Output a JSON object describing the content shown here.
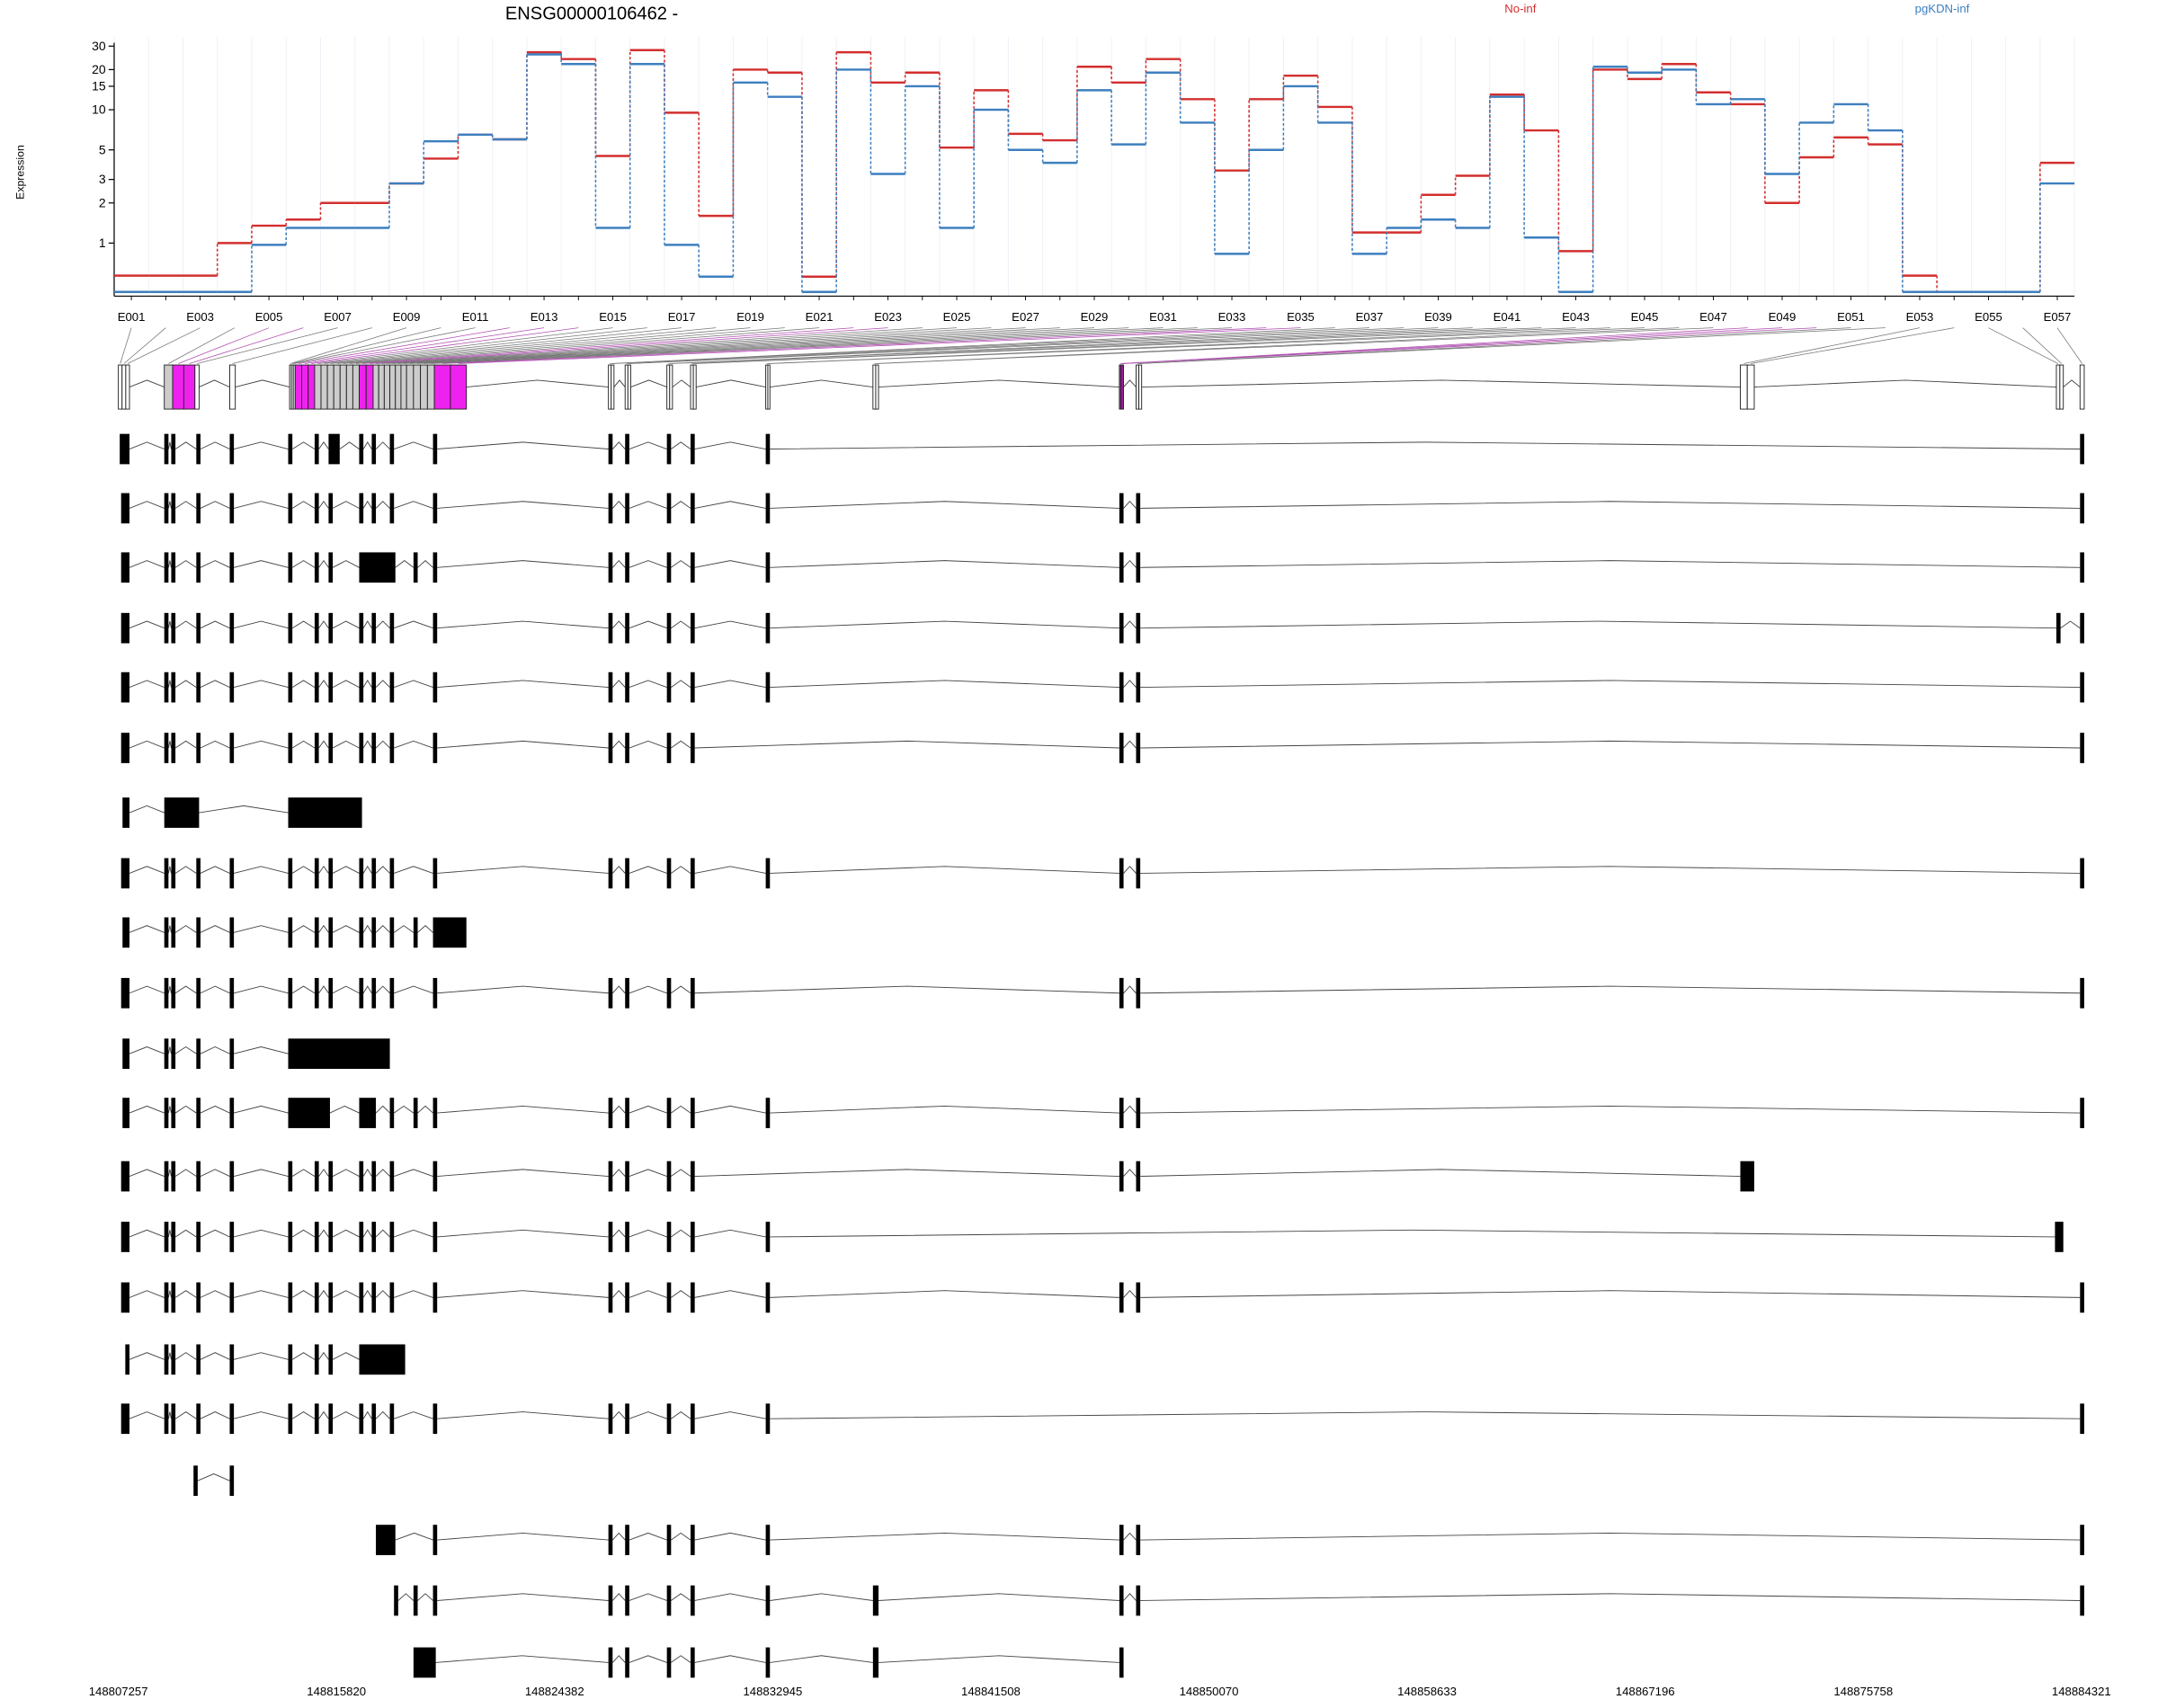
{
  "chart_data": {
    "type": "line",
    "title": "ENSG00000106462 -",
    "y_label": "Expression",
    "categories": [
      "E001",
      null,
      "E003",
      null,
      "E005",
      null,
      "E007",
      null,
      "E009",
      null,
      "E011",
      null,
      "E013",
      null,
      "E015",
      null,
      "E017",
      null,
      "E019",
      null,
      "E021",
      null,
      "E023",
      null,
      "E025",
      null,
      "E027",
      null,
      "E029",
      null,
      "E031",
      null,
      "E033",
      null,
      "E035",
      null,
      "E037",
      null,
      "E039",
      null,
      "E041",
      null,
      "E043",
      null,
      "E045",
      null,
      "E047",
      null,
      "E049",
      null,
      "E051",
      null,
      "E053",
      null,
      "E055",
      null,
      "E057"
    ],
    "series": [
      {
        "name": "No-inf",
        "color": "#d32f2f",
        "values": [
          0.57,
          0.57,
          0.57,
          1.0,
          1.35,
          1.5,
          2.0,
          2.0,
          2.8,
          4.3,
          6.5,
          6.0,
          27,
          24,
          4.5,
          28,
          9.5,
          1.6,
          20,
          19,
          0.56,
          27,
          16,
          19,
          5.2,
          14,
          6.6,
          5.9,
          21,
          16,
          24,
          12,
          3.5,
          12,
          18,
          10.5,
          1.2,
          1.2,
          2.3,
          3.2,
          13,
          7,
          0.87,
          20,
          17,
          22,
          13.5,
          11,
          2.0,
          4.4,
          6.2,
          5.5,
          0.57,
          0.43,
          0.43,
          0.43,
          4.0
        ]
      },
      {
        "name": "pgKDN-inf",
        "color": "#3d7fbf",
        "values": [
          0.43,
          0.43,
          0.43,
          0.43,
          0.97,
          1.3,
          1.3,
          1.3,
          2.8,
          5.8,
          6.5,
          6.0,
          26,
          22,
          1.3,
          22,
          0.97,
          0.56,
          16,
          12.5,
          0.43,
          20,
          3.3,
          15,
          1.3,
          10,
          5.0,
          4.0,
          14,
          5.5,
          19,
          8,
          0.83,
          5.0,
          15,
          8,
          0.83,
          1.3,
          1.5,
          1.3,
          12.5,
          1.1,
          0.43,
          21,
          19,
          20,
          11,
          12,
          3.3,
          8,
          11,
          7,
          0.43,
          0.43,
          0.43,
          0.43,
          2.8
        ]
      }
    ],
    "ylim": [
      0.4,
      35
    ],
    "yticks": [
      1,
      2,
      3,
      5,
      10,
      15,
      20,
      30
    ],
    "log_scale": true,
    "grid": true
  },
  "gene_model": {
    "xlim": [
      148807257,
      148884321
    ],
    "xticks": [
      148807257,
      148815820,
      148824382,
      148832945,
      148841508,
      148850070,
      148858633,
      148867196,
      148875758,
      148884321
    ]
  }
}
